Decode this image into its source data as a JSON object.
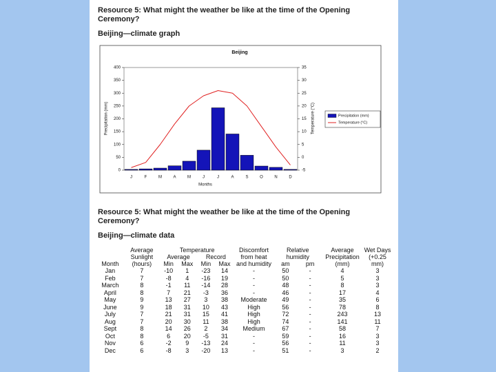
{
  "heading_1": "Resource 5: What might the weather be like at the time of the Opening Ceremony?",
  "subheading_1": "Beijing—climate graph",
  "chart_data": {
    "type": "bar-line",
    "title": "Beijing",
    "x_label": "Months",
    "y_label": "Precipitation (mm)",
    "y2_label": "Temperature (°C)",
    "categories": [
      "J",
      "F",
      "M",
      "A",
      "M",
      "J",
      "J",
      "A",
      "S",
      "O",
      "N",
      "D"
    ],
    "series": [
      {
        "name": "Precipitation (mm)",
        "type": "bar",
        "color": "#1414b8",
        "values": [
          3,
          5,
          8,
          17,
          35,
          78,
          243,
          141,
          58,
          16,
          11,
          3
        ]
      },
      {
        "name": "Temperature (°C)",
        "type": "line",
        "axis": "y2",
        "color": "#e02020",
        "values": [
          -4,
          -2,
          5,
          13,
          20,
          24,
          26,
          25,
          20,
          12,
          4,
          -3
        ]
      }
    ],
    "ylim": [
      0,
      400
    ],
    "yticks": [
      0,
      50,
      100,
      150,
      200,
      250,
      300,
      350,
      400
    ],
    "y2lim": [
      -5,
      35
    ],
    "y2ticks": [
      -5,
      0,
      5,
      10,
      15,
      20,
      25,
      30,
      35
    ],
    "legend": "right"
  },
  "heading_2": "Resource 5: What might the weather be like at the time of the Opening Ceremony?",
  "subheading_2": "Beijing—climate data",
  "table": {
    "headers": {
      "month": "Month",
      "sunlight": "Average Sunlight (hours)",
      "temperature": "Temperature",
      "average": "Average",
      "record": "Record",
      "min_max": [
        "Min",
        "Max",
        "Min",
        "Max"
      ],
      "discomfort": "Discomfort from heat and humidity",
      "humidity": "Relative humidity",
      "am_pm": [
        "am",
        "pm"
      ],
      "precipitation": "Average Precipitation (mm)",
      "wet_days": "Wet Days (+0.25 mm)"
    },
    "rows": [
      [
        "Jan",
        "7",
        "-10",
        "1",
        "-23",
        "14",
        "-",
        "50",
        "-",
        "4",
        "3"
      ],
      [
        "Feb",
        "7",
        "-8",
        "4",
        "-16",
        "19",
        "-",
        "50",
        "-",
        "5",
        "3"
      ],
      [
        "March",
        "8",
        "-1",
        "11",
        "-14",
        "28",
        "-",
        "48",
        "-",
        "8",
        "3"
      ],
      [
        "April",
        "8",
        "7",
        "21",
        "-3",
        "36",
        "-",
        "46",
        "-",
        "17",
        "4"
      ],
      [
        "May",
        "9",
        "13",
        "27",
        "3",
        "38",
        "Moderate",
        "49",
        "-",
        "35",
        "6"
      ],
      [
        "June",
        "9",
        "18",
        "31",
        "10",
        "43",
        "High",
        "56",
        "-",
        "78",
        "8"
      ],
      [
        "July",
        "7",
        "21",
        "31",
        "15",
        "41",
        "High",
        "72",
        "-",
        "243",
        "13"
      ],
      [
        "Aug",
        "7",
        "20",
        "30",
        "11",
        "38",
        "High",
        "74",
        "-",
        "141",
        "11"
      ],
      [
        "Sept",
        "8",
        "14",
        "26",
        "2",
        "34",
        "Medium",
        "67",
        "-",
        "58",
        "7"
      ],
      [
        "Oct",
        "8",
        "6",
        "20",
        "-5",
        "31",
        "-",
        "59",
        "-",
        "16",
        "3"
      ],
      [
        "Nov",
        "6",
        "-2",
        "9",
        "-13",
        "24",
        "-",
        "56",
        "-",
        "11",
        "3"
      ],
      [
        "Dec",
        "6",
        "-8",
        "3",
        "-20",
        "13",
        "-",
        "51",
        "-",
        "3",
        "2"
      ]
    ]
  }
}
